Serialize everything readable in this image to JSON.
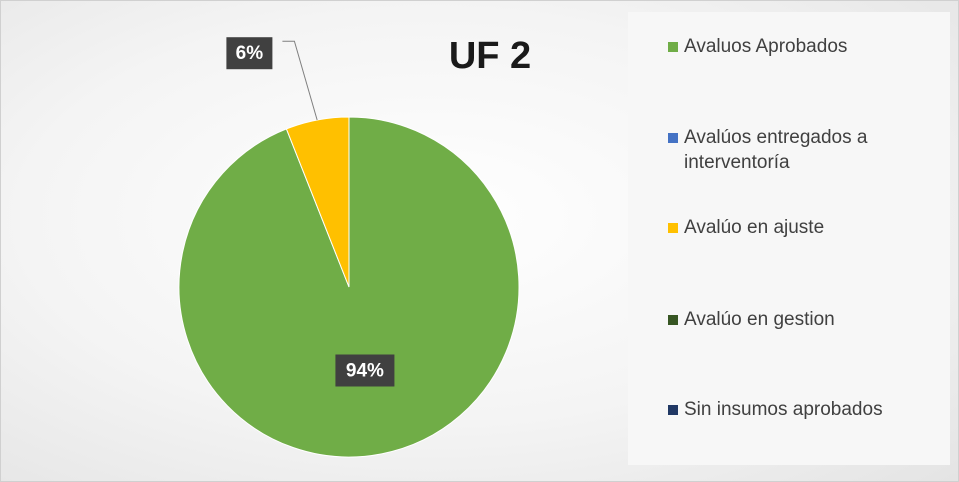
{
  "chart_data": {
    "type": "pie",
    "title": "UF 2",
    "categories": [
      "Avaluos Aprobados",
      "Avalúos entregados a interventoría",
      "Avalúo en ajuste",
      "Avalúo en gestion",
      "Sin insumos aprobados"
    ],
    "values": [
      94,
      0,
      6,
      0,
      0
    ],
    "value_labels": [
      "94%",
      null,
      "6%",
      null,
      null
    ],
    "colors": [
      "#70ad47",
      "#4472c4",
      "#ffc000",
      "#375623",
      "#203864"
    ]
  }
}
